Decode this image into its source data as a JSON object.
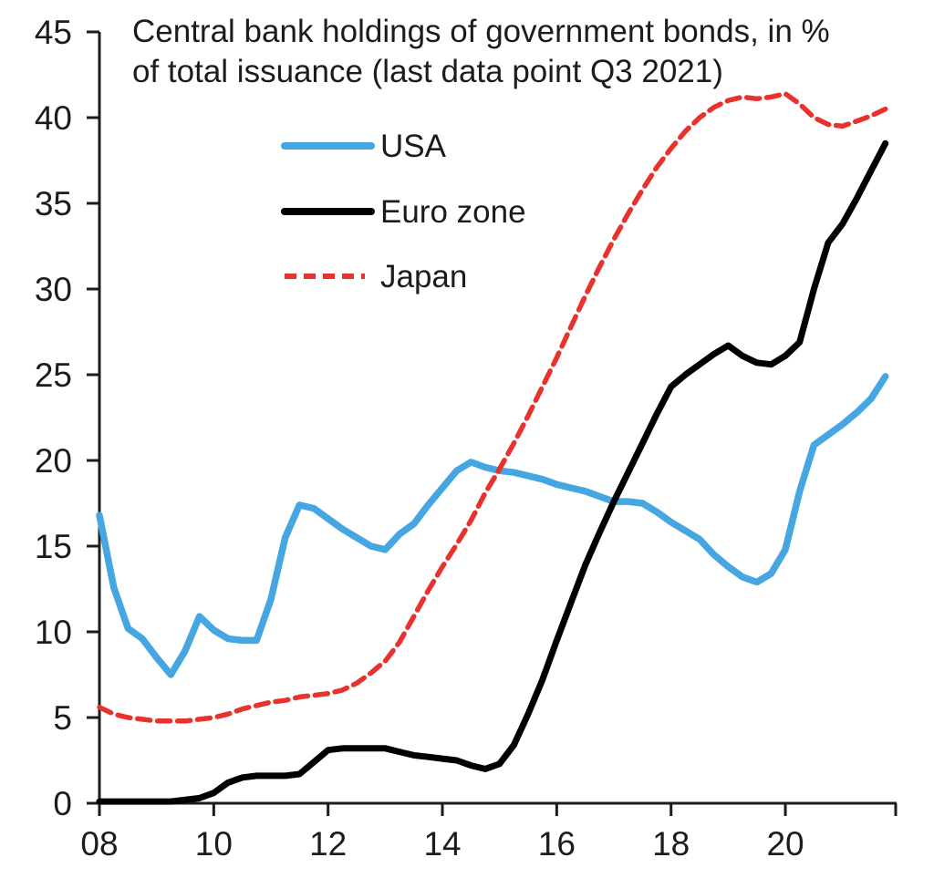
{
  "axes": {
    "y_labels": [
      "0",
      "5",
      "10",
      "15",
      "20",
      "25",
      "30",
      "35",
      "40",
      "45"
    ],
    "y_values": [
      0,
      5,
      10,
      15,
      20,
      25,
      30,
      35,
      40,
      45
    ],
    "x_labels": [
      "08",
      "10",
      "12",
      "14",
      "16",
      "18",
      "20"
    ],
    "x_values": [
      2008,
      2010,
      2012,
      2014,
      2016,
      2018,
      2020
    ]
  },
  "chart_data": {
    "type": "line",
    "title": "Central bank holdings of government bonds, in % of total issuance (last data point Q3 2021)",
    "title_lines": [
      "Central bank holdings of government bonds, in %",
      "of total issuance (last data point Q3 2021)"
    ],
    "xlabel": "",
    "ylabel": "",
    "ylim": [
      0,
      45
    ],
    "x_start": 2008.0,
    "x_step": 0.25,
    "x_end": 2021.75,
    "x_unit": "year, quarterly data",
    "grid": false,
    "legend_position": "upper-left-inside",
    "series": [
      {
        "name": "USA",
        "color": "#45A6E1",
        "line_style": "solid",
        "values": [
          16.8,
          12.6,
          10.2,
          9.6,
          8.5,
          7.5,
          8.9,
          10.9,
          10.1,
          9.6,
          9.5,
          9.5,
          11.9,
          15.5,
          17.4,
          17.2,
          16.6,
          16.0,
          15.5,
          15.0,
          14.8,
          15.7,
          16.3,
          17.4,
          18.4,
          19.4,
          19.9,
          19.6,
          19.4,
          19.3,
          19.1,
          18.9,
          18.6,
          18.4,
          18.2,
          17.9,
          17.6,
          17.6,
          17.5,
          17.0,
          16.4,
          15.9,
          15.4,
          14.5,
          13.8,
          13.2,
          12.9,
          13.4,
          14.8,
          18.2,
          20.9,
          21.5,
          22.1,
          22.8,
          23.6,
          24.9
        ]
      },
      {
        "name": "Euro zone",
        "color": "#000000",
        "line_style": "solid",
        "values": [
          0.1,
          0.1,
          0.1,
          0.1,
          0.1,
          0.1,
          0.2,
          0.3,
          0.6,
          1.2,
          1.5,
          1.6,
          1.6,
          1.6,
          1.7,
          2.4,
          3.1,
          3.2,
          3.2,
          3.2,
          3.2,
          3.0,
          2.8,
          2.7,
          2.6,
          2.5,
          2.2,
          2.0,
          2.3,
          3.4,
          5.2,
          7.2,
          9.5,
          11.7,
          13.9,
          15.8,
          17.6,
          19.3,
          21.0,
          22.7,
          24.3,
          25.0,
          25.6,
          26.2,
          26.7,
          26.1,
          25.7,
          25.6,
          26.1,
          26.9,
          30.0,
          32.7,
          33.8,
          35.3,
          36.9,
          38.5
        ]
      },
      {
        "name": "Japan",
        "color": "#E8322E",
        "line_style": "dashed",
        "values": [
          5.6,
          5.2,
          5.0,
          4.9,
          4.8,
          4.8,
          4.8,
          4.9,
          5.0,
          5.2,
          5.5,
          5.7,
          5.9,
          6.0,
          6.2,
          6.3,
          6.4,
          6.6,
          7.0,
          7.6,
          8.3,
          9.4,
          10.9,
          12.4,
          13.8,
          15.1,
          16.5,
          18.1,
          19.5,
          21.0,
          22.6,
          24.3,
          26.0,
          27.8,
          29.6,
          31.3,
          32.9,
          34.4,
          35.8,
          37.1,
          38.2,
          39.2,
          40.0,
          40.6,
          41.0,
          41.2,
          41.1,
          41.2,
          41.4,
          40.8,
          40.0,
          39.6,
          39.5,
          39.8,
          40.1,
          40.5
        ]
      }
    ]
  }
}
